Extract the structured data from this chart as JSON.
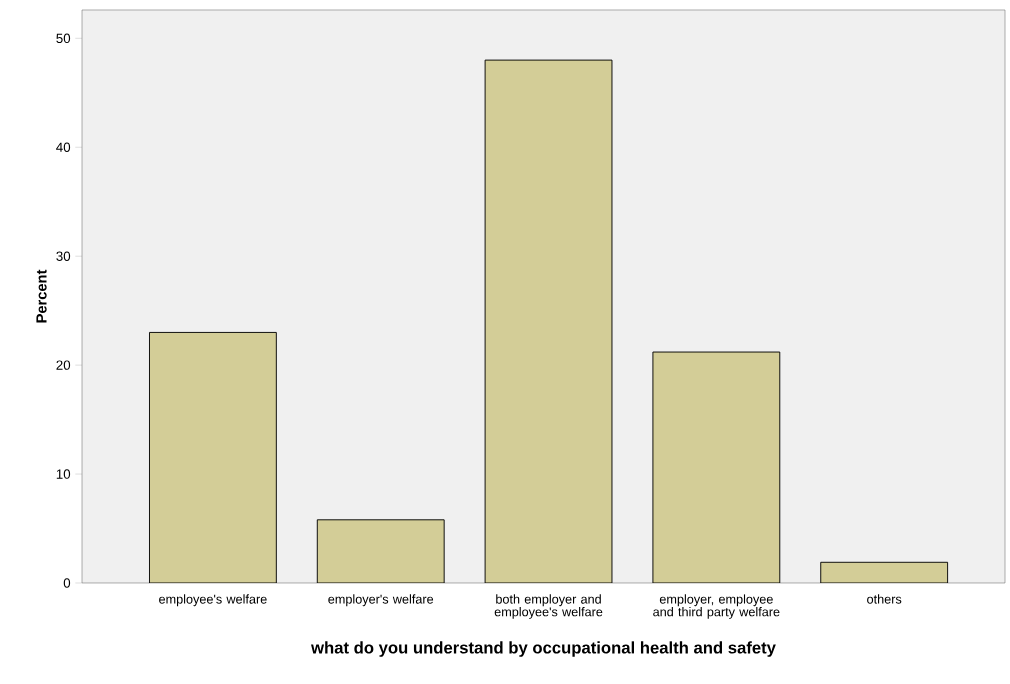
{
  "chart_data": {
    "type": "bar",
    "xlabel": "what do you understand by occupational health and safety",
    "ylabel": "Percent",
    "categories": [
      "employee's welfare",
      "employer's welfare",
      "both employer and employee's welfare",
      "employer, employee and third party welfare",
      "others"
    ],
    "values": [
      23.0,
      5.8,
      48.0,
      21.2,
      1.9
    ],
    "color": "#d3cd97",
    "ylim": [
      0,
      52.6
    ],
    "yticks": [
      0,
      10,
      20,
      30,
      40,
      50
    ],
    "grid": false
  }
}
